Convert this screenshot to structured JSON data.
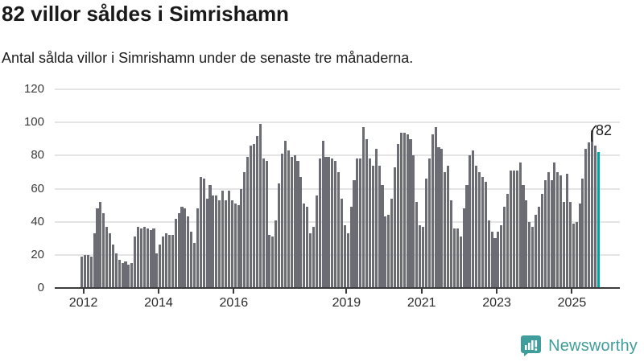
{
  "header": {
    "title": "82 villor såldes i Simrishamn",
    "subtitle": "Antal sålda villor i Simrishamn under de senaste tre månaderna."
  },
  "chart_data": {
    "type": "bar",
    "title": "82 villor såldes i Simrishamn",
    "subtitle": "Antal sålda villor i Simrishamn under de senaste tre månaderna.",
    "unit": "antal sålda villor (rullande tre månader)",
    "start_year": 2012,
    "start_month": 1,
    "end_label": "2025-10",
    "ylim": [
      0,
      120
    ],
    "y_ticks": [
      0,
      20,
      40,
      60,
      80,
      100,
      120
    ],
    "x_tick_years": [
      2012,
      2014,
      2016,
      2019,
      2021,
      2023,
      2025
    ],
    "grid": true,
    "legend": "none",
    "bar_color": "#6c6c74",
    "highlight_color": "#00a2a0",
    "highlight_last": true,
    "annotation": {
      "text": "82",
      "value": 82
    },
    "values": [
      19,
      20,
      20,
      19,
      33,
      48,
      52,
      45,
      37,
      33,
      26,
      21,
      17,
      15,
      16,
      14,
      15,
      31,
      37,
      36,
      37,
      36,
      35,
      36,
      21,
      26,
      31,
      33,
      32,
      32,
      42,
      45,
      49,
      48,
      43,
      34,
      27,
      48,
      67,
      66,
      54,
      62,
      56,
      56,
      53,
      59,
      53,
      59,
      53,
      51,
      50,
      60,
      70,
      79,
      86,
      87,
      92,
      99,
      78,
      77,
      32,
      31,
      41,
      63,
      81,
      89,
      83,
      79,
      80,
      77,
      67,
      51,
      49,
      33,
      37,
      56,
      78,
      89,
      79,
      79,
      78,
      77,
      70,
      54,
      38,
      33,
      49,
      65,
      78,
      78,
      97,
      90,
      78,
      74,
      84,
      74,
      62,
      43,
      44,
      54,
      73,
      87,
      94,
      94,
      93,
      90,
      80,
      52,
      38,
      37,
      66,
      78,
      93,
      97,
      85,
      84,
      70,
      74,
      53,
      36,
      36,
      31,
      48,
      62,
      80,
      83,
      74,
      70,
      67,
      64,
      41,
      34,
      30,
      34,
      38,
      49,
      57,
      71,
      71,
      71,
      76,
      62,
      53,
      40,
      37,
      44,
      49,
      57,
      65,
      70,
      65,
      76,
      70,
      68,
      52,
      69,
      52,
      39,
      40,
      51,
      66,
      84,
      88,
      95,
      86,
      82
    ]
  },
  "footer": {
    "brand": "Newsworthy"
  }
}
